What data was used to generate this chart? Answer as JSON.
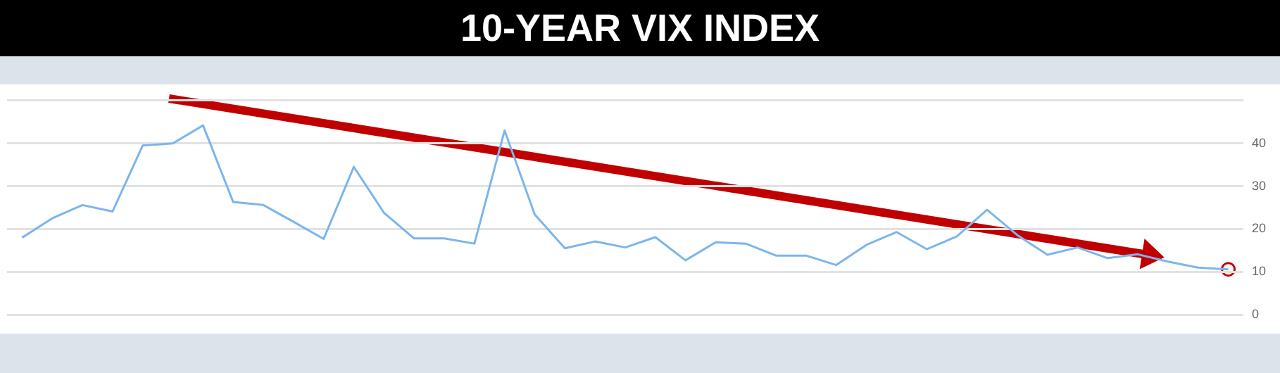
{
  "chart_data": {
    "type": "line",
    "title": "10-YEAR VIX INDEX",
    "categories": [
      null,
      null,
      null,
      null,
      null,
      null,
      null,
      null,
      null,
      null,
      null,
      null,
      null,
      null,
      null,
      null,
      null,
      null,
      null,
      null,
      null,
      null,
      null,
      null,
      null,
      null,
      null,
      null,
      null,
      null,
      null,
      null,
      null,
      null,
      null,
      null,
      null,
      null,
      null,
      null,
      null
    ],
    "series": [
      {
        "color": "#7cb5ec",
        "values": [
          18.0,
          22.5,
          25.6,
          24.1,
          39.5,
          40.0,
          44.2,
          26.3,
          25.6,
          21.7,
          17.7,
          34.5,
          23.8,
          17.8,
          17.8,
          16.6,
          43.0,
          23.4,
          15.5,
          17.1,
          15.7,
          18.1,
          12.7,
          16.9,
          16.6,
          13.8,
          13.8,
          11.6,
          16.3,
          19.3,
          15.3,
          18.3,
          24.5,
          18.6,
          14.0,
          15.7,
          13.2,
          14.1,
          12.4,
          11.0,
          10.6
        ]
      }
    ],
    "ylim": [
      0,
      50
    ],
    "yticks": [
      0,
      10,
      20,
      30,
      40,
      {
        "value": 50,
        "label": null
      }
    ],
    "grid": "y",
    "tick_labels": "y",
    "marker": "none",
    "line_style": "solid"
  }
}
